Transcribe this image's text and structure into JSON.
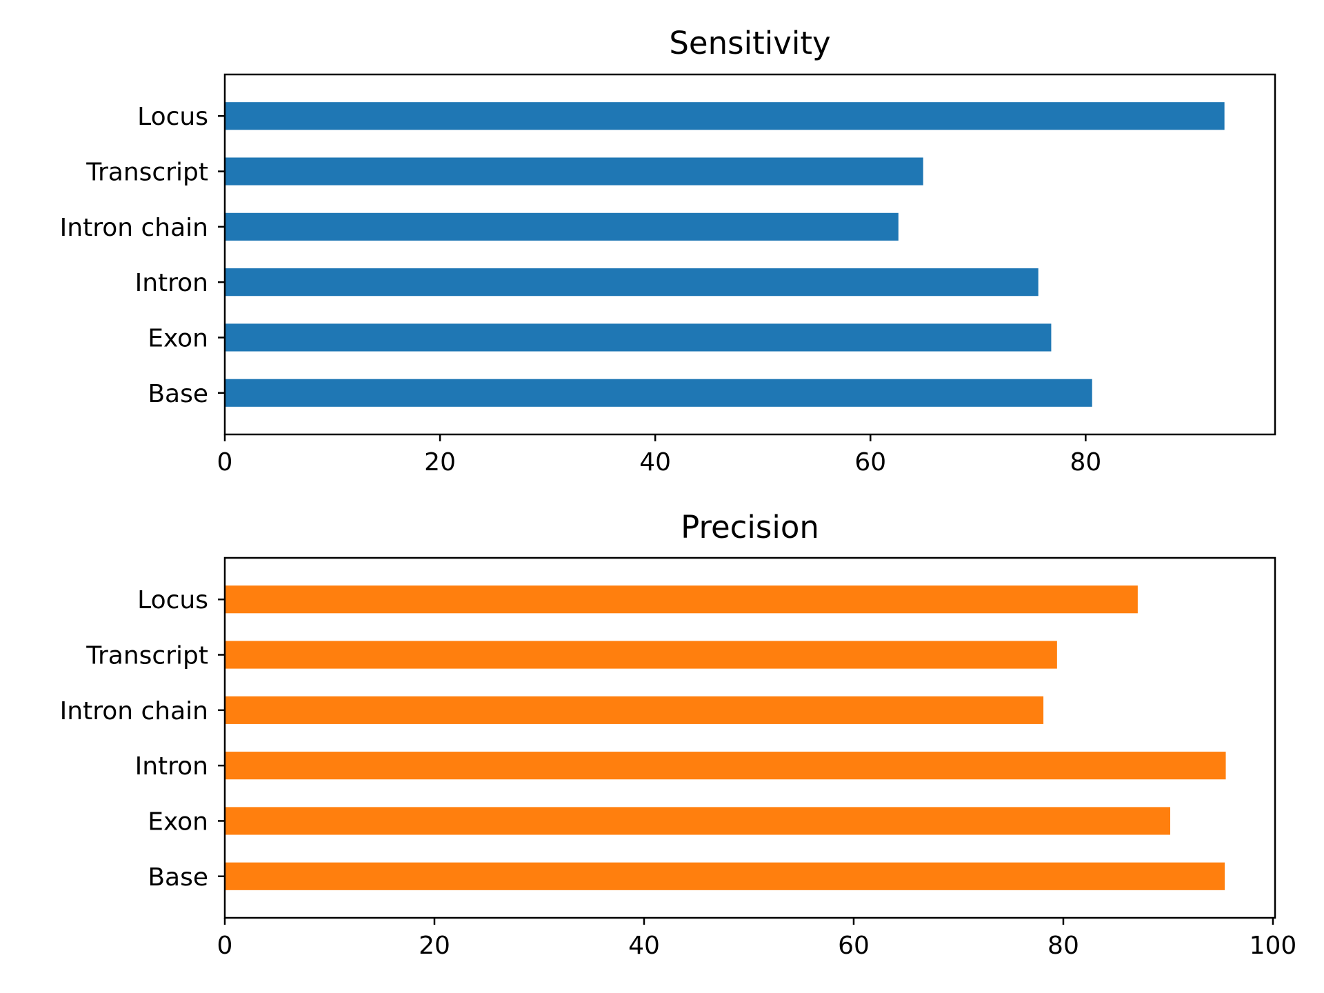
{
  "chart_data": [
    {
      "type": "bar",
      "orientation": "horizontal",
      "title": "Sensitivity",
      "categories": [
        "Base",
        "Exon",
        "Intron",
        "Intron chain",
        "Transcript",
        "Locus"
      ],
      "values": [
        80.6,
        76.8,
        75.6,
        62.6,
        64.9,
        92.9
      ],
      "xlim": [
        0,
        97.6
      ],
      "xticks": [
        0,
        20,
        40,
        60,
        80
      ],
      "xlabel": "",
      "ylabel": "",
      "color": "#1f77b4",
      "grid": false
    },
    {
      "type": "bar",
      "orientation": "horizontal",
      "title": "Precision",
      "categories": [
        "Base",
        "Exon",
        "Intron",
        "Intron chain",
        "Transcript",
        "Locus"
      ],
      "values": [
        95.4,
        90.2,
        95.5,
        78.1,
        79.4,
        87.1
      ],
      "xlim": [
        0,
        100.2
      ],
      "xticks": [
        0,
        20,
        40,
        60,
        80,
        100
      ],
      "xlabel": "",
      "ylabel": "",
      "color": "#ff7f0e",
      "grid": false
    }
  ]
}
